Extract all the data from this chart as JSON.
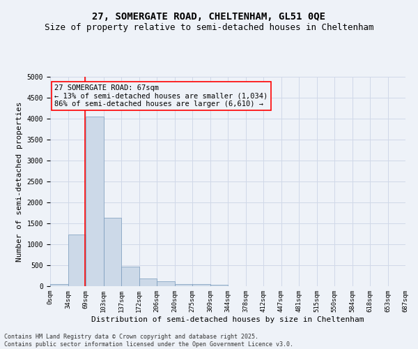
{
  "title": "27, SOMERGATE ROAD, CHELTENHAM, GL51 0QE",
  "subtitle": "Size of property relative to semi-detached houses in Cheltenham",
  "xlabel": "Distribution of semi-detached houses by size in Cheltenham",
  "ylabel": "Number of semi-detached properties",
  "bin_labels": [
    "0sqm",
    "34sqm",
    "69sqm",
    "103sqm",
    "137sqm",
    "172sqm",
    "206sqm",
    "240sqm",
    "275sqm",
    "309sqm",
    "344sqm",
    "378sqm",
    "412sqm",
    "447sqm",
    "481sqm",
    "515sqm",
    "550sqm",
    "584sqm",
    "618sqm",
    "653sqm",
    "687sqm"
  ],
  "bar_values": [
    50,
    1230,
    4050,
    1640,
    470,
    190,
    110,
    55,
    45,
    30,
    0,
    0,
    0,
    0,
    0,
    0,
    0,
    0,
    0,
    0
  ],
  "bar_color": "#ccd9e8",
  "bar_edge_color": "#7799bb",
  "grid_color": "#d0d8e8",
  "background_color": "#eef2f8",
  "red_line_x": 1.97,
  "ylim": [
    0,
    5000
  ],
  "yticks": [
    0,
    500,
    1000,
    1500,
    2000,
    2500,
    3000,
    3500,
    4000,
    4500,
    5000
  ],
  "annotation_text": "27 SOMERGATE ROAD: 67sqm\n← 13% of semi-detached houses are smaller (1,034)\n86% of semi-detached houses are larger (6,610) →",
  "footer_line1": "Contains HM Land Registry data © Crown copyright and database right 2025.",
  "footer_line2": "Contains public sector information licensed under the Open Government Licence v3.0.",
  "title_fontsize": 10,
  "subtitle_fontsize": 9,
  "tick_fontsize": 6.5,
  "ylabel_fontsize": 8,
  "xlabel_fontsize": 8,
  "annotation_fontsize": 7.5,
  "footer_fontsize": 6
}
